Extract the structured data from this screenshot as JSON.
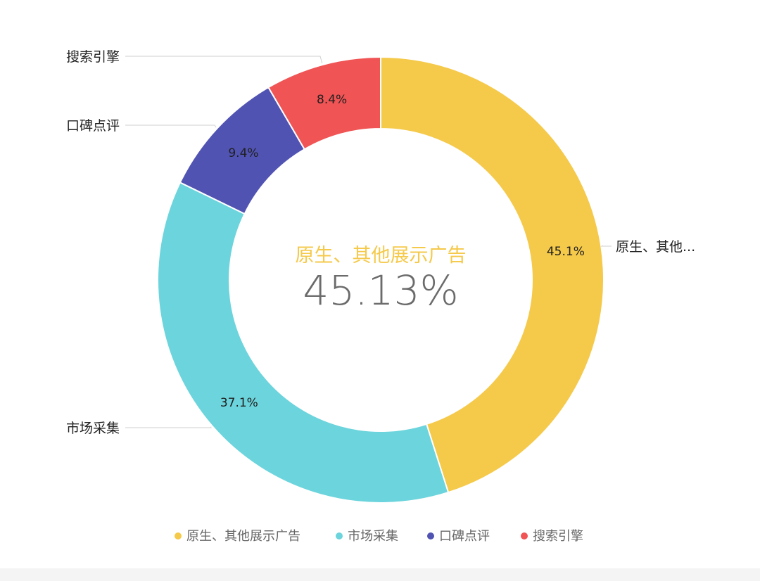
{
  "chart_data": {
    "type": "pie",
    "variant": "donut",
    "categories": [
      "原生、其他展示广告",
      "市场采集",
      "口碑点评",
      "搜索引擎"
    ],
    "values": [
      45.1,
      37.1,
      9.4,
      8.4
    ],
    "slice_labels": [
      "45.1%",
      "37.1%",
      "9.4%",
      "8.4%"
    ],
    "outer_labels": [
      "原生、其他...",
      "市场采集",
      "口碑点评",
      "搜索引擎"
    ],
    "colors": [
      "#f5c94a",
      "#6cd4dc",
      "#5153b3",
      "#f05455"
    ],
    "center": {
      "title": "原生、其他展示广告",
      "value": "45.13%",
      "title_color": "#f5c94a"
    },
    "legend": {
      "placement": "bottom",
      "items": [
        "原生、其他展示广告",
        "市场采集",
        "口碑点评",
        "搜索引擎"
      ]
    }
  }
}
